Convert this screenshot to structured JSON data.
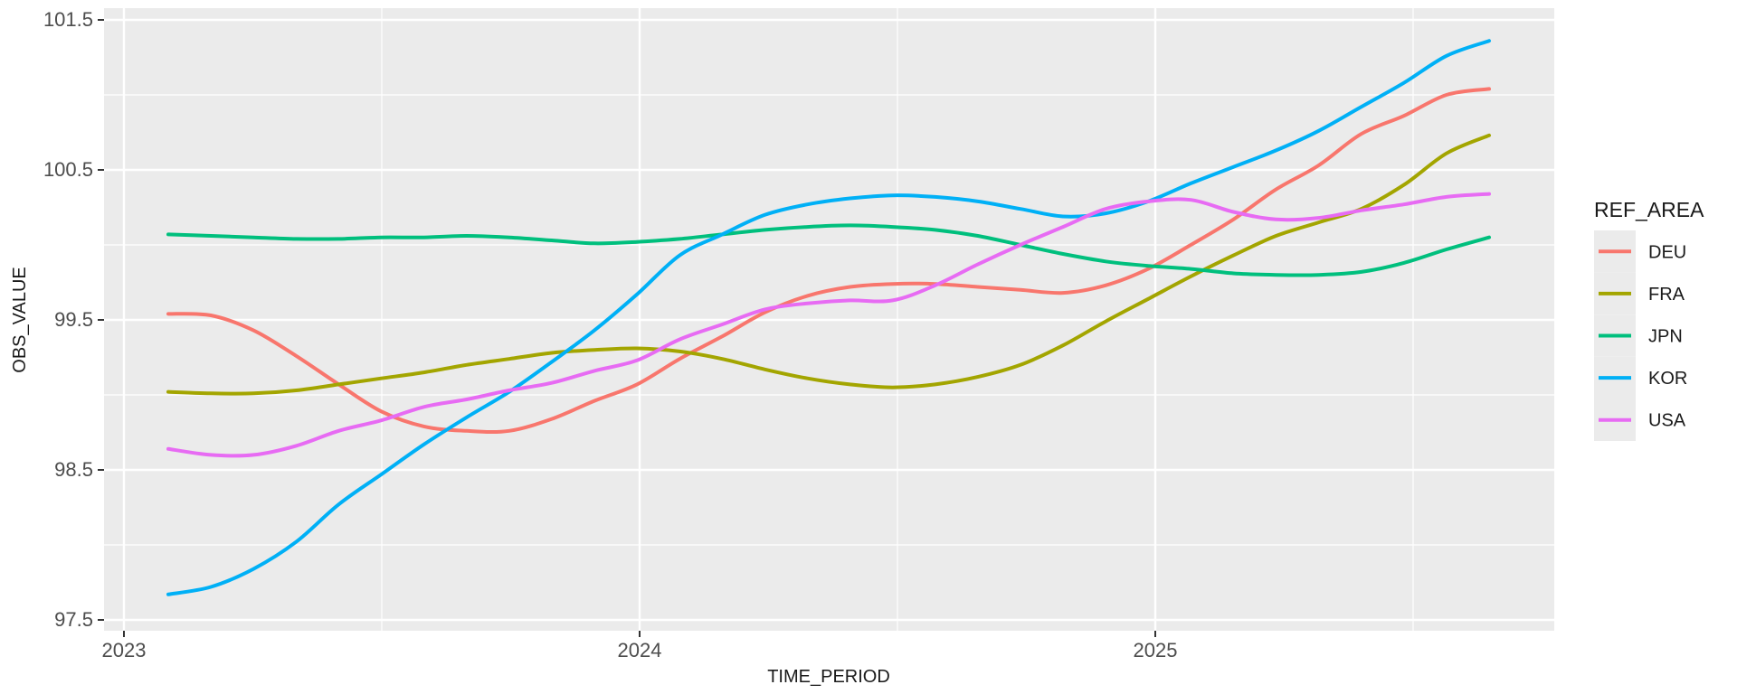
{
  "figure": {
    "background_color": "#ffffff",
    "panel_color": "#EBEBEB",
    "gridline_color": "#ffffff",
    "tick_mark_color": "#333333",
    "tick_label_color": "#4d4d4d",
    "text_color": "#1a1a1a"
  },
  "chart_data": {
    "type": "line",
    "title": "",
    "xlabel": "TIME_PERIOD",
    "ylabel": "OBS_VALUE",
    "legend_title": "REF_AREA",
    "legend_position": "right",
    "grid": "on",
    "x_tick_labels": [
      "2023",
      "2024",
      "2025"
    ],
    "y_tick_labels": [
      "101.5",
      "100.5",
      "99.5",
      "98.5",
      "97.5"
    ],
    "y_ticks": [
      101.5,
      100.5,
      99.5,
      98.5,
      97.5
    ],
    "y_minor_ticks": [
      101.0,
      100.0,
      99.0,
      98.0
    ],
    "x_minor_ticks_years": [
      2023.5,
      2024.5,
      2025.5
    ],
    "ylim": [
      97.43,
      101.58
    ],
    "xlim_years": [
      2022.96,
      2025.77
    ],
    "x": [
      "2023-02",
      "2023-03",
      "2023-04",
      "2023-05",
      "2023-06",
      "2023-07",
      "2023-08",
      "2023-09",
      "2023-10",
      "2023-11",
      "2023-12",
      "2024-01",
      "2024-02",
      "2024-03",
      "2024-04",
      "2024-05",
      "2024-06",
      "2024-07",
      "2024-08",
      "2024-09",
      "2024-10",
      "2024-11",
      "2024-12",
      "2025-01",
      "2025-02",
      "2025-03",
      "2025-04",
      "2025-05",
      "2025-06",
      "2025-07",
      "2025-08",
      "2025-09"
    ],
    "series": [
      {
        "name": "DEU",
        "color": "#F8766D",
        "values": [
          99.54,
          99.53,
          99.43,
          99.26,
          99.07,
          98.89,
          98.79,
          98.76,
          98.76,
          98.84,
          98.96,
          99.07,
          99.24,
          99.39,
          99.55,
          99.66,
          99.72,
          99.74,
          99.74,
          99.72,
          99.7,
          99.68,
          99.73,
          99.84,
          100.0,
          100.17,
          100.37,
          100.53,
          100.74,
          100.86,
          101.0,
          101.04
        ]
      },
      {
        "name": "FRA",
        "color": "#A3A500",
        "values": [
          99.02,
          99.01,
          99.01,
          99.03,
          99.07,
          99.11,
          99.15,
          99.2,
          99.24,
          99.28,
          99.3,
          99.31,
          99.29,
          99.24,
          99.17,
          99.11,
          99.07,
          99.05,
          99.07,
          99.12,
          99.2,
          99.33,
          99.49,
          99.64,
          99.79,
          99.93,
          100.06,
          100.15,
          100.24,
          100.4,
          100.61,
          100.73
        ]
      },
      {
        "name": "JPN",
        "color": "#00BF7D",
        "values": [
          100.07,
          100.06,
          100.05,
          100.04,
          100.04,
          100.05,
          100.05,
          100.06,
          100.05,
          100.03,
          100.01,
          100.02,
          100.04,
          100.07,
          100.1,
          100.12,
          100.13,
          100.12,
          100.1,
          100.06,
          100.0,
          99.94,
          99.89,
          99.86,
          99.84,
          99.81,
          99.8,
          99.8,
          99.82,
          99.88,
          99.97,
          100.05
        ]
      },
      {
        "name": "KOR",
        "color": "#00B0F6",
        "values": [
          97.67,
          97.72,
          97.84,
          98.02,
          98.27,
          98.47,
          98.67,
          98.85,
          99.02,
          99.22,
          99.43,
          99.67,
          99.93,
          100.07,
          100.2,
          100.27,
          100.31,
          100.33,
          100.32,
          100.29,
          100.24,
          100.19,
          100.21,
          100.29,
          100.41,
          100.52,
          100.63,
          100.76,
          100.92,
          101.08,
          101.26,
          101.36
        ]
      },
      {
        "name": "USA",
        "color": "#E76BF3",
        "values": [
          98.64,
          98.6,
          98.6,
          98.66,
          98.76,
          98.83,
          98.92,
          98.97,
          99.03,
          99.08,
          99.16,
          99.23,
          99.37,
          99.47,
          99.57,
          99.61,
          99.63,
          99.63,
          99.73,
          99.87,
          100.0,
          100.12,
          100.24,
          100.29,
          100.3,
          100.22,
          100.17,
          100.18,
          100.23,
          100.27,
          100.32,
          100.34
        ]
      }
    ]
  }
}
